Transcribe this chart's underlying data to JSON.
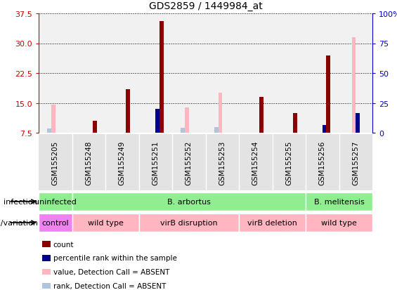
{
  "title": "GDS2859 / 1449984_at",
  "samples": [
    "GSM155205",
    "GSM155248",
    "GSM155249",
    "GSM155251",
    "GSM155252",
    "GSM155253",
    "GSM155254",
    "GSM155255",
    "GSM155256",
    "GSM155257"
  ],
  "count_values": [
    0,
    10.5,
    18.5,
    35.5,
    0,
    0,
    16.5,
    12.5,
    27.0,
    0
  ],
  "rank_values": [
    0,
    0,
    0,
    13.5,
    0,
    0,
    0,
    0,
    9.5,
    12.5
  ],
  "absent_value_values": [
    14.5,
    0,
    0,
    0,
    13.8,
    17.5,
    0,
    0,
    0,
    31.5
  ],
  "absent_rank_values": [
    8.5,
    0,
    0,
    0,
    8.8,
    9.0,
    0,
    0,
    0,
    0
  ],
  "ylim_left": [
    7.5,
    37.5
  ],
  "yticks_left": [
    7.5,
    15.0,
    22.5,
    30.0,
    37.5
  ],
  "ylim_right": [
    0,
    100
  ],
  "yticks_right": [
    0,
    25,
    50,
    75,
    100
  ],
  "infection_groups": [
    {
      "label": "uninfected",
      "start": 0,
      "end": 1,
      "color": "#90ee90"
    },
    {
      "label": "B. arbortus",
      "start": 1,
      "end": 8,
      "color": "#90ee90"
    },
    {
      "label": "B. melitensis",
      "start": 8,
      "end": 10,
      "color": "#90ee90"
    }
  ],
  "genotype_groups": [
    {
      "label": "control",
      "start": 0,
      "end": 1,
      "color": "#ee82ee"
    },
    {
      "label": "wild type",
      "start": 1,
      "end": 3,
      "color": "#ffb6c1"
    },
    {
      "label": "virB disruption",
      "start": 3,
      "end": 6,
      "color": "#ffb6c1"
    },
    {
      "label": "virB deletion",
      "start": 6,
      "end": 8,
      "color": "#ffb6c1"
    },
    {
      "label": "wild type",
      "start": 8,
      "end": 10,
      "color": "#ffb6c1"
    }
  ],
  "color_count": "#8b0000",
  "color_rank": "#00008b",
  "color_absent_value": "#ffb6c1",
  "color_absent_rank": "#b0c4de",
  "left_axis_color": "#cc0000",
  "right_axis_color": "#0000cc",
  "col_bg_color": "#c8c8c8",
  "legend_items": [
    {
      "color": "#8b0000",
      "label": "count"
    },
    {
      "color": "#00008b",
      "label": "percentile rank within the sample"
    },
    {
      "color": "#ffb6c1",
      "label": "value, Detection Call = ABSENT"
    },
    {
      "color": "#b0c4de",
      "label": "rank, Detection Call = ABSENT"
    }
  ]
}
